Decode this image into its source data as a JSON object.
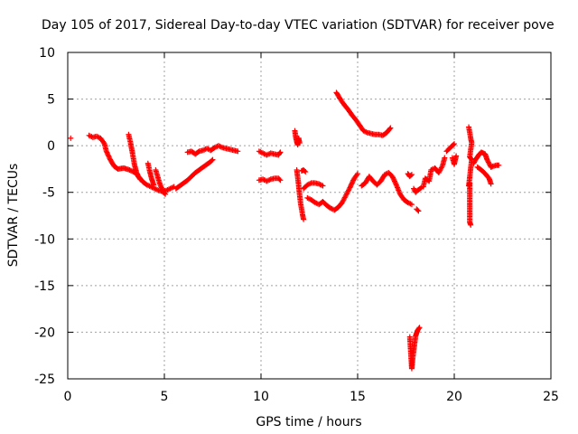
{
  "chart_data": {
    "type": "scatter",
    "title": "Day 105 of 2017, Sidereal Day-to-day VTEC variation (SDTVAR) for receiver pove",
    "xlabel": "GPS time / hours",
    "ylabel": "SDTVAR / TECUs",
    "xlim": [
      0,
      25
    ],
    "ylim": [
      -25,
      10
    ],
    "xticks": [
      0,
      5,
      10,
      15,
      20,
      25
    ],
    "yticks": [
      10,
      5,
      0,
      -5,
      -10,
      -15,
      -20,
      -25
    ],
    "grid": true,
    "marker": "+",
    "marker_color": "#ff0000",
    "series": [
      {
        "name": "SDTVAR",
        "segments": [
          [
            [
              0.15,
              0.8
            ]
          ],
          [
            [
              1.1,
              1.1
            ],
            [
              1.3,
              0.9
            ],
            [
              1.5,
              1.0
            ],
            [
              1.7,
              0.8
            ],
            [
              1.9,
              0.2
            ],
            [
              2.0,
              -0.6
            ],
            [
              2.2,
              -1.5
            ],
            [
              2.4,
              -2.2
            ],
            [
              2.6,
              -2.5
            ],
            [
              2.9,
              -2.4
            ],
            [
              3.2,
              -2.6
            ],
            [
              3.5,
              -2.9
            ],
            [
              3.7,
              -3.4
            ],
            [
              3.9,
              -3.9
            ],
            [
              4.1,
              -4.2
            ],
            [
              4.3,
              -4.4
            ],
            [
              4.5,
              -4.6
            ],
            [
              4.7,
              -4.8
            ],
            [
              4.9,
              -4.9
            ],
            [
              5.1,
              -4.8
            ],
            [
              5.3,
              -4.6
            ],
            [
              5.5,
              -4.4
            ]
          ],
          [
            [
              3.15,
              1.2
            ],
            [
              3.25,
              0.3
            ],
            [
              3.35,
              -0.8
            ],
            [
              3.45,
              -2.0
            ],
            [
              3.55,
              -2.8
            ],
            [
              3.65,
              -3.3
            ],
            [
              3.75,
              -3.6
            ]
          ],
          [
            [
              4.15,
              -1.9
            ],
            [
              4.25,
              -2.8
            ],
            [
              4.35,
              -3.6
            ],
            [
              4.45,
              -4.2
            ]
          ],
          [
            [
              4.55,
              -2.6
            ],
            [
              4.65,
              -3.3
            ],
            [
              4.75,
              -4.0
            ],
            [
              4.85,
              -4.5
            ],
            [
              4.95,
              -5.0
            ],
            [
              5.05,
              -5.2
            ]
          ],
          [
            [
              5.6,
              -4.6
            ],
            [
              5.8,
              -4.3
            ],
            [
              6.0,
              -4.0
            ],
            [
              6.2,
              -3.7
            ],
            [
              6.4,
              -3.3
            ],
            [
              6.6,
              -2.9
            ],
            [
              6.8,
              -2.6
            ],
            [
              7.0,
              -2.3
            ],
            [
              7.2,
              -2.0
            ],
            [
              7.4,
              -1.7
            ],
            [
              7.5,
              -1.5
            ]
          ],
          [
            [
              6.2,
              -0.7
            ],
            [
              6.4,
              -0.6
            ],
            [
              6.6,
              -0.9
            ],
            [
              6.8,
              -0.6
            ],
            [
              7.0,
              -0.5
            ],
            [
              7.2,
              -0.3
            ],
            [
              7.4,
              -0.5
            ],
            [
              7.6,
              -0.2
            ],
            [
              7.8,
              0.0
            ],
            [
              8.0,
              -0.2
            ],
            [
              8.2,
              -0.3
            ],
            [
              8.4,
              -0.4
            ],
            [
              8.6,
              -0.5
            ],
            [
              8.8,
              -0.6
            ]
          ],
          [
            [
              9.9,
              -0.6
            ],
            [
              10.1,
              -0.8
            ],
            [
              10.3,
              -1.0
            ],
            [
              10.5,
              -0.8
            ],
            [
              10.7,
              -0.9
            ],
            [
              10.9,
              -1.0
            ],
            [
              11.0,
              -0.7
            ]
          ],
          [
            [
              9.9,
              -3.7
            ],
            [
              10.1,
              -3.6
            ],
            [
              10.3,
              -3.8
            ],
            [
              10.5,
              -3.6
            ],
            [
              10.7,
              -3.5
            ],
            [
              10.9,
              -3.5
            ],
            [
              11.0,
              -3.7
            ]
          ],
          [
            [
              11.75,
              1.6
            ],
            [
              11.8,
              0.9
            ],
            [
              11.85,
              0.4
            ],
            [
              11.9,
              0.1
            ],
            [
              11.95,
              0.8
            ],
            [
              12.0,
              0.3
            ]
          ],
          [
            [
              11.85,
              -2.6
            ],
            [
              11.9,
              -3.4
            ],
            [
              11.95,
              -4.3
            ],
            [
              12.0,
              -5.3
            ],
            [
              12.05,
              -6.2
            ],
            [
              12.1,
              -6.8
            ],
            [
              12.15,
              -7.4
            ],
            [
              12.2,
              -7.9
            ]
          ],
          [
            [
              12.1,
              -2.7
            ],
            [
              12.2,
              -2.6
            ],
            [
              12.3,
              -2.8
            ]
          ],
          [
            [
              12.2,
              -4.6
            ],
            [
              12.4,
              -4.2
            ],
            [
              12.6,
              -4.0
            ],
            [
              12.8,
              -4.0
            ],
            [
              13.0,
              -4.1
            ],
            [
              13.2,
              -4.3
            ]
          ],
          [
            [
              12.4,
              -5.6
            ],
            [
              12.6,
              -5.8
            ],
            [
              12.8,
              -6.1
            ],
            [
              13.0,
              -6.3
            ],
            [
              13.2,
              -6.0
            ],
            [
              13.4,
              -6.4
            ],
            [
              13.6,
              -6.7
            ],
            [
              13.8,
              -6.9
            ],
            [
              14.0,
              -6.6
            ],
            [
              14.2,
              -6.1
            ],
            [
              14.4,
              -5.3
            ],
            [
              14.6,
              -4.5
            ],
            [
              14.8,
              -3.6
            ],
            [
              15.0,
              -3.0
            ]
          ],
          [
            [
              13.9,
              5.7
            ],
            [
              14.1,
              5.0
            ],
            [
              14.3,
              4.4
            ],
            [
              14.5,
              3.9
            ],
            [
              14.7,
              3.3
            ],
            [
              14.9,
              2.8
            ],
            [
              15.1,
              2.2
            ],
            [
              15.3,
              1.6
            ],
            [
              15.5,
              1.4
            ],
            [
              15.7,
              1.3
            ],
            [
              15.9,
              1.2
            ],
            [
              16.1,
              1.2
            ],
            [
              16.3,
              1.1
            ],
            [
              16.5,
              1.4
            ],
            [
              16.7,
              1.9
            ]
          ],
          [
            [
              15.2,
              -4.3
            ],
            [
              15.4,
              -4.0
            ],
            [
              15.6,
              -3.3
            ],
            [
              15.8,
              -3.8
            ],
            [
              16.0,
              -4.2
            ],
            [
              16.2,
              -3.8
            ],
            [
              16.4,
              -3.1
            ],
            [
              16.6,
              -2.9
            ],
            [
              16.8,
              -3.3
            ],
            [
              17.0,
              -4.2
            ],
            [
              17.2,
              -5.2
            ],
            [
              17.4,
              -5.8
            ],
            [
              17.6,
              -6.1
            ],
            [
              17.8,
              -6.3
            ]
          ],
          [
            [
              17.6,
              -3.0
            ],
            [
              17.7,
              -3.3
            ],
            [
              17.8,
              -3.1
            ]
          ],
          [
            [
              17.9,
              -4.6
            ],
            [
              18.0,
              -5.0
            ],
            [
              18.1,
              -4.8
            ],
            [
              18.3,
              -4.5
            ]
          ],
          [
            [
              18.05,
              -6.8
            ],
            [
              18.15,
              -7.0
            ]
          ],
          [
            [
              17.7,
              -20.5
            ],
            [
              17.8,
              -23.9
            ],
            [
              17.85,
              -22.8
            ],
            [
              17.9,
              -22.0
            ],
            [
              17.95,
              -21.2
            ],
            [
              18.0,
              -20.4
            ],
            [
              18.05,
              -20.1
            ],
            [
              18.1,
              -19.8
            ],
            [
              18.2,
              -19.5
            ]
          ],
          [
            [
              18.4,
              -4.4
            ],
            [
              18.5,
              -3.5
            ],
            [
              18.7,
              -3.8
            ],
            [
              18.8,
              -2.6
            ],
            [
              19.0,
              -2.4
            ],
            [
              19.2,
              -2.9
            ],
            [
              19.4,
              -2.1
            ],
            [
              19.5,
              -1.3
            ]
          ],
          [
            [
              19.6,
              -0.6
            ],
            [
              19.8,
              -0.2
            ],
            [
              19.9,
              0.0
            ],
            [
              20.0,
              0.2
            ]
          ],
          [
            [
              19.9,
              -1.3
            ],
            [
              20.0,
              -2.0
            ],
            [
              20.05,
              -1.5
            ],
            [
              20.1,
              -1.1
            ]
          ],
          [
            [
              20.75,
              2.0
            ],
            [
              20.8,
              1.4
            ],
            [
              20.85,
              0.8
            ],
            [
              20.9,
              0.3
            ],
            [
              20.8,
              -1.2
            ],
            [
              20.9,
              -1.5
            ],
            [
              20.75,
              -4.3
            ],
            [
              20.8,
              -4.0
            ],
            [
              20.8,
              -8.2
            ],
            [
              20.85,
              -8.5
            ]
          ],
          [
            [
              21.0,
              -1.9
            ],
            [
              21.1,
              -1.5
            ],
            [
              21.2,
              -1.2
            ],
            [
              21.3,
              -0.9
            ],
            [
              21.4,
              -0.7
            ],
            [
              21.5,
              -0.8
            ],
            [
              21.6,
              -0.9
            ],
            [
              21.7,
              -1.5
            ],
            [
              21.8,
              -1.9
            ],
            [
              21.9,
              -2.3
            ],
            [
              22.0,
              -2.2
            ],
            [
              22.2,
              -2.1
            ],
            [
              22.3,
              -2.1
            ]
          ],
          [
            [
              21.2,
              -2.3
            ],
            [
              21.4,
              -2.6
            ],
            [
              21.6,
              -3.0
            ],
            [
              21.8,
              -3.5
            ],
            [
              21.9,
              -4.1
            ]
          ]
        ]
      }
    ]
  }
}
